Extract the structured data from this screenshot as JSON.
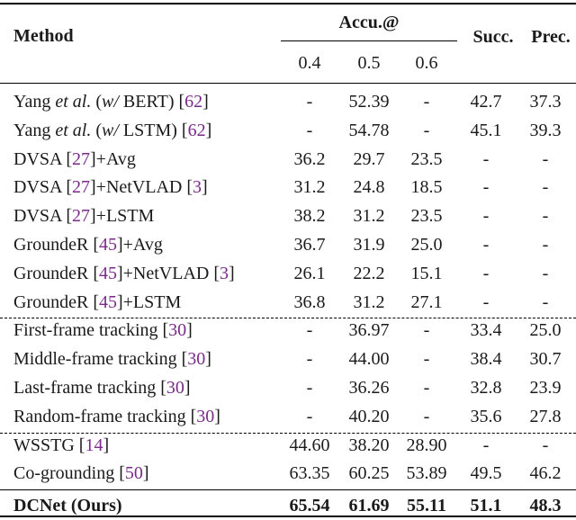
{
  "header": {
    "method": "Method",
    "accu": "Accu.@",
    "succ": "Succ.",
    "prec": "Prec.",
    "thresholds": [
      "0.4",
      "0.5",
      "0.6"
    ]
  },
  "groups": [
    {
      "rows": [
        {
          "pre": "Yang ",
          "em": "et al.",
          "mid": " (",
          "em2": "w/",
          "post": " BERT) [",
          "cite": "62",
          "tail": "]",
          "cite2": "",
          "tail2": "",
          "v": [
            "-",
            "52.39",
            "-",
            "42.7",
            "37.3"
          ]
        },
        {
          "pre": "Yang ",
          "em": "et al.",
          "mid": " (",
          "em2": "w/",
          "post": " LSTM) [",
          "cite": "62",
          "tail": "]",
          "cite2": "",
          "tail2": "",
          "v": [
            "-",
            "54.78",
            "-",
            "45.1",
            "39.3"
          ]
        },
        {
          "pre": "DVSA [",
          "em": "",
          "mid": "",
          "em2": "",
          "post": "",
          "cite": "27",
          "tail": "]+Avg",
          "cite2": "",
          "tail2": "",
          "v": [
            "36.2",
            "29.7",
            "23.5",
            "-",
            "-"
          ]
        },
        {
          "pre": "DVSA [",
          "em": "",
          "mid": "",
          "em2": "",
          "post": "",
          "cite": "27",
          "tail": "]+NetVLAD [",
          "cite2": "3",
          "tail2": "]",
          "v": [
            "31.2",
            "24.8",
            "18.5",
            "-",
            "-"
          ]
        },
        {
          "pre": "DVSA [",
          "em": "",
          "mid": "",
          "em2": "",
          "post": "",
          "cite": "27",
          "tail": "]+LSTM",
          "cite2": "",
          "tail2": "",
          "v": [
            "38.2",
            "31.2",
            "23.5",
            "-",
            "-"
          ]
        },
        {
          "pre": "GroundeR [",
          "em": "",
          "mid": "",
          "em2": "",
          "post": "",
          "cite": "45",
          "tail": "]+Avg",
          "cite2": "",
          "tail2": "",
          "v": [
            "36.7",
            "31.9",
            "25.0",
            "-",
            "-"
          ]
        },
        {
          "pre": "GroundeR [",
          "em": "",
          "mid": "",
          "em2": "",
          "post": "",
          "cite": "45",
          "tail": "]+NetVLAD [",
          "cite2": "3",
          "tail2": "]",
          "v": [
            "26.1",
            "22.2",
            "15.1",
            "-",
            "-"
          ]
        },
        {
          "pre": "GroundeR [",
          "em": "",
          "mid": "",
          "em2": "",
          "post": "",
          "cite": "45",
          "tail": "]+LSTM",
          "cite2": "",
          "tail2": "",
          "v": [
            "36.8",
            "31.2",
            "27.1",
            "-",
            "-"
          ]
        }
      ]
    },
    {
      "rows": [
        {
          "pre": "First-frame tracking [",
          "em": "",
          "mid": "",
          "em2": "",
          "post": "",
          "cite": "30",
          "tail": "]",
          "cite2": "",
          "tail2": "",
          "v": [
            "-",
            "36.97",
            "-",
            "33.4",
            "25.0"
          ]
        },
        {
          "pre": "Middle-frame tracking [",
          "em": "",
          "mid": "",
          "em2": "",
          "post": "",
          "cite": "30",
          "tail": "]",
          "cite2": "",
          "tail2": "",
          "v": [
            "-",
            "44.00",
            "-",
            "38.4",
            "30.7"
          ]
        },
        {
          "pre": "Last-frame tracking [",
          "em": "",
          "mid": "",
          "em2": "",
          "post": "",
          "cite": "30",
          "tail": "]",
          "cite2": "",
          "tail2": "",
          "v": [
            "-",
            "36.26",
            "-",
            "32.8",
            "23.9"
          ]
        },
        {
          "pre": "Random-frame tracking [",
          "em": "",
          "mid": "",
          "em2": "",
          "post": "",
          "cite": "30",
          "tail": "]",
          "cite2": "",
          "tail2": "",
          "v": [
            "-",
            "40.20",
            "-",
            "35.6",
            "27.8"
          ]
        }
      ]
    },
    {
      "rows": [
        {
          "pre": "WSSTG [",
          "em": "",
          "mid": "",
          "em2": "",
          "post": "",
          "cite": "14",
          "tail": "]",
          "cite2": "",
          "tail2": "",
          "v": [
            "44.60",
            "38.20",
            "28.90",
            "-",
            "-"
          ]
        },
        {
          "pre": "Co-grounding [",
          "em": "",
          "mid": "",
          "em2": "",
          "post": "",
          "cite": "50",
          "tail": "]",
          "cite2": "",
          "tail2": "",
          "v": [
            "63.35",
            "60.25",
            "53.89",
            "49.5",
            "46.2"
          ]
        }
      ]
    }
  ],
  "final": {
    "label": "DCNet (Ours)",
    "v": [
      "65.54",
      "61.69",
      "55.11",
      "51.1",
      "48.3"
    ]
  }
}
